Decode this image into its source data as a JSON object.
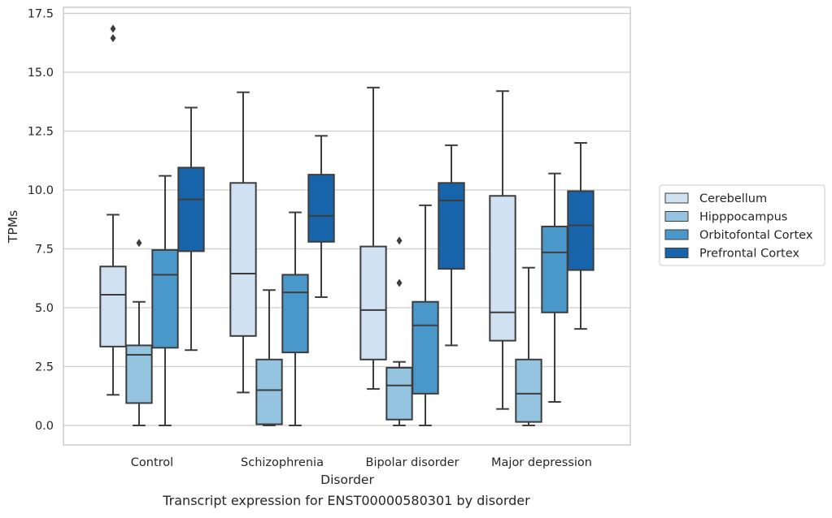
{
  "chart_data": {
    "type": "boxplot",
    "title": "",
    "caption": "Transcript expression for ENST00000580301 by disorder",
    "xlabel": "Disorder",
    "ylabel": "TPMs",
    "ylim": [
      -0.8,
      17.6
    ],
    "yticks": [
      0.0,
      2.5,
      5.0,
      7.5,
      10.0,
      12.5,
      15.0,
      17.5
    ],
    "ytick_labels": [
      "0.0",
      "2.5",
      "5.0",
      "7.5",
      "10.0",
      "12.5",
      "15.0",
      "17.5"
    ],
    "grid": "horizontal",
    "legend_position": "right",
    "categories": [
      "Control",
      "Schizophrenia",
      "Bipolar disorder",
      "Major depression"
    ],
    "series": [
      {
        "name": "Cerebellum",
        "color": "#d0e1f2",
        "boxes": [
          {
            "whislo": 1.3,
            "q1": 3.35,
            "med": 5.55,
            "q3": 6.75,
            "whishi": 8.95,
            "fliers": [
              16.45,
              16.85
            ]
          },
          {
            "whislo": 1.4,
            "q1": 3.8,
            "med": 6.45,
            "q3": 10.3,
            "whishi": 14.15,
            "fliers": []
          },
          {
            "whislo": 1.55,
            "q1": 2.8,
            "med": 4.9,
            "q3": 7.6,
            "whishi": 14.35,
            "fliers": []
          },
          {
            "whislo": 0.7,
            "q1": 3.6,
            "med": 4.8,
            "q3": 9.75,
            "whishi": 14.2,
            "fliers": []
          }
        ]
      },
      {
        "name": "Hipppocampus",
        "color": "#94c4df",
        "boxes": [
          {
            "whislo": 0.0,
            "q1": 0.95,
            "med": 3.0,
            "q3": 3.4,
            "whishi": 5.25,
            "fliers": [
              7.75
            ]
          },
          {
            "whislo": 0.0,
            "q1": 0.05,
            "med": 1.5,
            "q3": 2.8,
            "whishi": 5.75,
            "fliers": []
          },
          {
            "whislo": 0.0,
            "q1": 0.25,
            "med": 1.7,
            "q3": 2.45,
            "whishi": 2.7,
            "fliers": [
              6.05,
              7.85
            ]
          },
          {
            "whislo": 0.0,
            "q1": 0.15,
            "med": 1.35,
            "q3": 2.8,
            "whishi": 6.7,
            "fliers": []
          }
        ]
      },
      {
        "name": "Orbitofontal Cortex",
        "color": "#4a98c9",
        "boxes": [
          {
            "whislo": 0.0,
            "q1": 3.3,
            "med": 6.4,
            "q3": 7.45,
            "whishi": 10.6,
            "fliers": []
          },
          {
            "whislo": 0.0,
            "q1": 3.1,
            "med": 5.65,
            "q3": 6.4,
            "whishi": 9.05,
            "fliers": []
          },
          {
            "whislo": 0.0,
            "q1": 1.35,
            "med": 4.25,
            "q3": 5.25,
            "whishi": 9.35,
            "fliers": []
          },
          {
            "whislo": 1.0,
            "q1": 4.8,
            "med": 7.35,
            "q3": 8.45,
            "whishi": 10.7,
            "fliers": []
          }
        ]
      },
      {
        "name": "Prefrontal Cortex",
        "color": "#1764ab",
        "boxes": [
          {
            "whislo": 3.2,
            "q1": 7.4,
            "med": 9.6,
            "q3": 10.95,
            "whishi": 13.5,
            "fliers": []
          },
          {
            "whislo": 5.45,
            "q1": 7.8,
            "med": 8.9,
            "q3": 10.65,
            "whishi": 12.3,
            "fliers": []
          },
          {
            "whislo": 3.4,
            "q1": 6.65,
            "med": 9.55,
            "q3": 10.3,
            "whishi": 11.9,
            "fliers": []
          },
          {
            "whislo": 4.1,
            "q1": 6.6,
            "med": 8.5,
            "q3": 9.95,
            "whishi": 12.0,
            "fliers": []
          }
        ]
      }
    ],
    "colors": {
      "box_edge": "#3d3d3d",
      "grid": "#cccccc",
      "frame": "#cccccc",
      "text": "#262626"
    }
  }
}
